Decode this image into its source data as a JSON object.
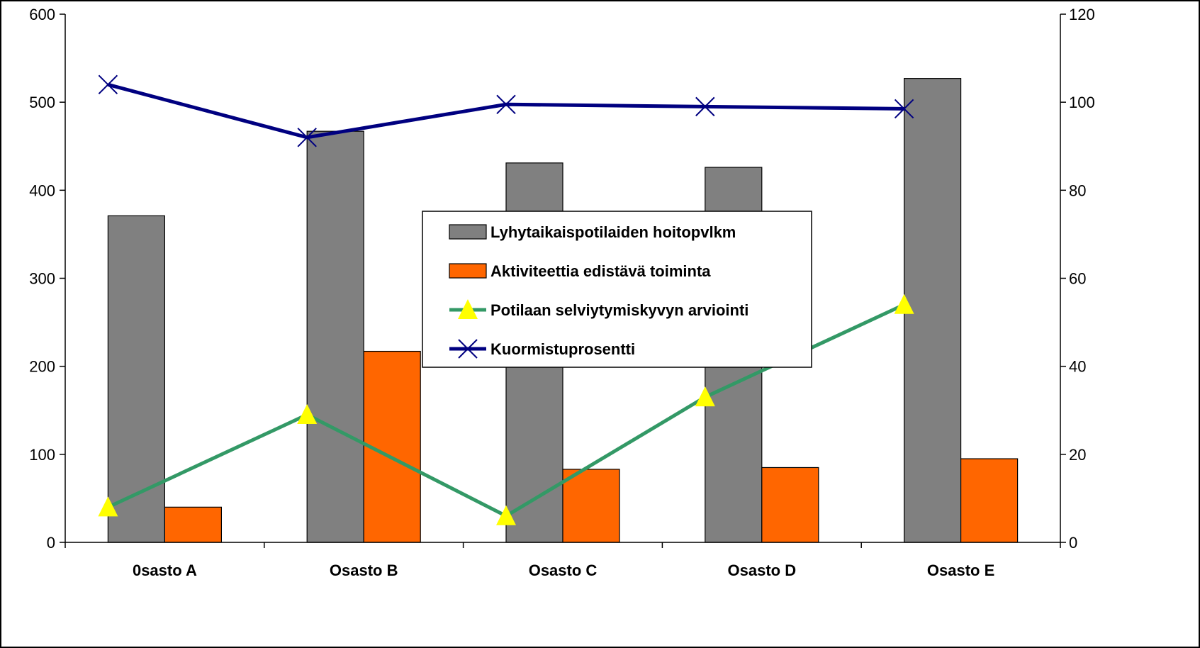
{
  "chart_data": {
    "type": "bar",
    "categories": [
      "0sasto A",
      "Osasto B",
      "Osasto C",
      "Osasto D",
      "Osasto E"
    ],
    "y_left": {
      "min": 0,
      "max": 600,
      "ticks": [
        0,
        100,
        200,
        300,
        400,
        500,
        600
      ]
    },
    "y_right": {
      "min": 0,
      "max": 120,
      "ticks": [
        0,
        20,
        40,
        60,
        80,
        100,
        120
      ]
    },
    "grid": false,
    "legend_position": "center",
    "series": [
      {
        "name": "Lyhytaikaispotilaiden hoitopvlkm",
        "kind": "bar",
        "axis": "left",
        "color": "#808080",
        "values": [
          371,
          467,
          431,
          426,
          527
        ]
      },
      {
        "name": "Aktiviteettia edistävä toiminta",
        "kind": "bar",
        "axis": "left",
        "color": "#ff6600",
        "values": [
          40,
          217,
          83,
          85,
          95
        ]
      },
      {
        "name": "Potilaan selviytymiskyvyn arviointi",
        "kind": "line",
        "axis": "right",
        "color": "#339966",
        "marker": "triangle",
        "marker_color": "#ffff00",
        "values": [
          8,
          29,
          6,
          33,
          54
        ]
      },
      {
        "name": "Kuormistuprosentti",
        "kind": "line",
        "axis": "right",
        "color": "#000080",
        "marker": "x",
        "values": [
          104,
          92,
          99.5,
          99,
          98.5
        ]
      }
    ]
  }
}
